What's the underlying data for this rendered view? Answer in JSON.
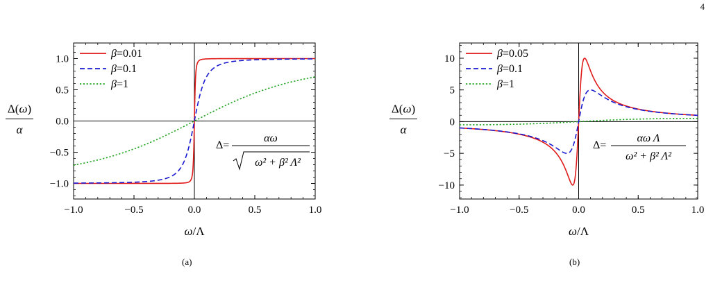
{
  "page_number": "4",
  "captions": [
    "(a)",
    "(b)"
  ],
  "colors": {
    "red": "#e01919",
    "blue": "#1a1ad0",
    "green": "#1fa51f"
  },
  "chart_data": [
    {
      "type": "line",
      "xlabel": "ω/Λ",
      "ylabel_top": "Δ(ω)",
      "ylabel_bottom": "α",
      "xlim": [
        -1.0,
        1.0
      ],
      "ylim": [
        -1.25,
        1.25
      ],
      "xticks": [
        -1.0,
        -0.5,
        0.0,
        0.5,
        1.0
      ],
      "xtick_labels": [
        "−1.0",
        "−0.5",
        "0.0",
        "0.5",
        "1.0"
      ],
      "yticks": [
        1.0,
        0.5,
        0.0,
        -0.5,
        -1.0
      ],
      "ytick_labels": [
        "1.0",
        "0.5",
        "0.0",
        "−0.5",
        "−1.0"
      ],
      "legend": [
        "β=0.01",
        "β=0.1",
        "β=1"
      ],
      "legend_position": "top-left",
      "formula": {
        "lhs": "Δ=",
        "num": "αω",
        "den": "ω² + β² Λ²",
        "sqrt": true
      },
      "series": [
        {
          "name": "β=0.01",
          "beta": 0.01,
          "style": "solid",
          "color": "#e01919",
          "x": [
            -1.0,
            -0.5,
            -0.1,
            -0.05,
            -0.02,
            -0.01,
            0.0,
            0.01,
            0.02,
            0.05,
            0.1,
            0.5,
            1.0
          ],
          "y": [
            -1.0,
            -1.0,
            -0.995,
            -0.98,
            -0.894,
            -0.707,
            0.0,
            0.707,
            0.894,
            0.98,
            0.995,
            1.0,
            1.0
          ]
        },
        {
          "name": "β=0.1",
          "beta": 0.1,
          "style": "dashed",
          "color": "#1a1ad0",
          "x": [
            -1.0,
            -0.5,
            -0.3,
            -0.2,
            -0.1,
            -0.05,
            0.0,
            0.05,
            0.1,
            0.2,
            0.3,
            0.5,
            1.0
          ],
          "y": [
            -0.995,
            -0.981,
            -0.949,
            -0.894,
            -0.707,
            -0.447,
            0.0,
            0.447,
            0.707,
            0.894,
            0.949,
            0.981,
            0.995
          ]
        },
        {
          "name": "β=1",
          "beta": 1,
          "style": "dotted",
          "color": "#1fa51f",
          "x": [
            -1.0,
            -0.75,
            -0.5,
            -0.25,
            0.0,
            0.25,
            0.5,
            0.75,
            1.0
          ],
          "y": [
            -0.707,
            -0.6,
            -0.447,
            -0.243,
            0.0,
            0.243,
            0.447,
            0.6,
            0.707
          ]
        }
      ]
    },
    {
      "type": "line",
      "xlabel": "ω/Λ",
      "ylabel_top": "Δ(ω)",
      "ylabel_bottom": "α",
      "xlim": [
        -1.0,
        1.0
      ],
      "ylim": [
        -12.2,
        12.4
      ],
      "xticks": [
        -1.0,
        -0.5,
        0.0,
        0.5,
        1.0
      ],
      "xtick_labels": [
        "−1.0",
        "−0.5",
        "0.0",
        "0.5",
        "1.0"
      ],
      "yticks": [
        10,
        5,
        0,
        -5,
        -10
      ],
      "ytick_labels": [
        "10",
        "5",
        "0",
        "−5",
        "−10"
      ],
      "legend": [
        "β=0.05",
        "β=0.1",
        "β=1"
      ],
      "legend_position": "top-left",
      "formula": {
        "lhs": "Δ=",
        "num": "αω Λ",
        "den": "ω² + β² Λ²",
        "sqrt": false
      },
      "series": [
        {
          "name": "β=0.05",
          "beta": 0.05,
          "style": "solid",
          "color": "#e01919",
          "x": [
            -1.0,
            -0.5,
            -0.2,
            -0.1,
            -0.05,
            -0.02,
            0.0,
            0.02,
            0.05,
            0.1,
            0.2,
            0.5,
            1.0
          ],
          "y": [
            -1.0,
            -1.98,
            -4.71,
            -8.0,
            -10.0,
            -6.9,
            0.0,
            6.9,
            10.0,
            8.0,
            4.71,
            1.98,
            1.0
          ]
        },
        {
          "name": "β=0.1",
          "beta": 0.1,
          "style": "dashed",
          "color": "#1a1ad0",
          "x": [
            -1.0,
            -0.5,
            -0.3,
            -0.2,
            -0.1,
            -0.05,
            0.0,
            0.05,
            0.1,
            0.2,
            0.3,
            0.5,
            1.0
          ],
          "y": [
            -0.99,
            -1.92,
            -3.0,
            -4.0,
            -5.0,
            -4.0,
            0.0,
            4.0,
            5.0,
            4.0,
            3.0,
            1.92,
            0.99
          ]
        },
        {
          "name": "β=1",
          "beta": 1,
          "style": "dotted",
          "color": "#1fa51f",
          "x": [
            -1.0,
            -0.5,
            0.0,
            0.5,
            1.0
          ],
          "y": [
            -0.5,
            -0.4,
            0.0,
            0.4,
            0.5
          ]
        }
      ]
    }
  ]
}
